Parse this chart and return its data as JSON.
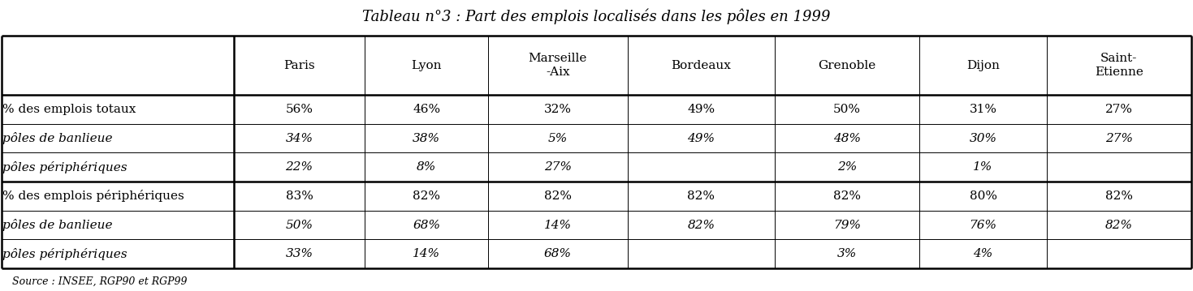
{
  "title": "Tableau n°3 : Part des emplois localisés dans les pôles en 1999",
  "source": "Source : INSEE, RGP90 et RGP99",
  "columns": [
    "Paris",
    "Lyon",
    "Marseille\n-Aix",
    "Bordeaux",
    "Grenoble",
    "Dijon",
    "Saint-\nEtienne"
  ],
  "rows": [
    {
      "label": "% des emplois totaux",
      "italic": false,
      "values": [
        "56%",
        "46%",
        "32%",
        "49%",
        "50%",
        "31%",
        "27%"
      ]
    },
    {
      "label": "pôles de banlieue",
      "italic": true,
      "values": [
        "34%",
        "38%",
        "5%",
        "49%",
        "48%",
        "30%",
        "27%"
      ]
    },
    {
      "label": "pôles périphériques",
      "italic": true,
      "values": [
        "22%",
        "8%",
        "27%",
        "",
        "2%",
        "1%",
        ""
      ]
    },
    {
      "label": "% des emplois périphériques",
      "italic": false,
      "values": [
        "83%",
        "82%",
        "82%",
        "82%",
        "82%",
        "80%",
        "82%"
      ]
    },
    {
      "label": "pôles de banlieue",
      "italic": true,
      "values": [
        "50%",
        "68%",
        "14%",
        "82%",
        "79%",
        "76%",
        "82%"
      ]
    },
    {
      "label": "pôles périphériques",
      "italic": true,
      "values": [
        "33%",
        "14%",
        "68%",
        "",
        "3%",
        "4%",
        ""
      ]
    }
  ],
  "bg_color": "#ffffff",
  "text_color": "#000000",
  "border_color": "#000000",
  "thick_lw": 1.8,
  "thin_lw": 0.7,
  "title_fontsize": 13,
  "header_fontsize": 11,
  "body_fontsize": 11,
  "source_fontsize": 9
}
